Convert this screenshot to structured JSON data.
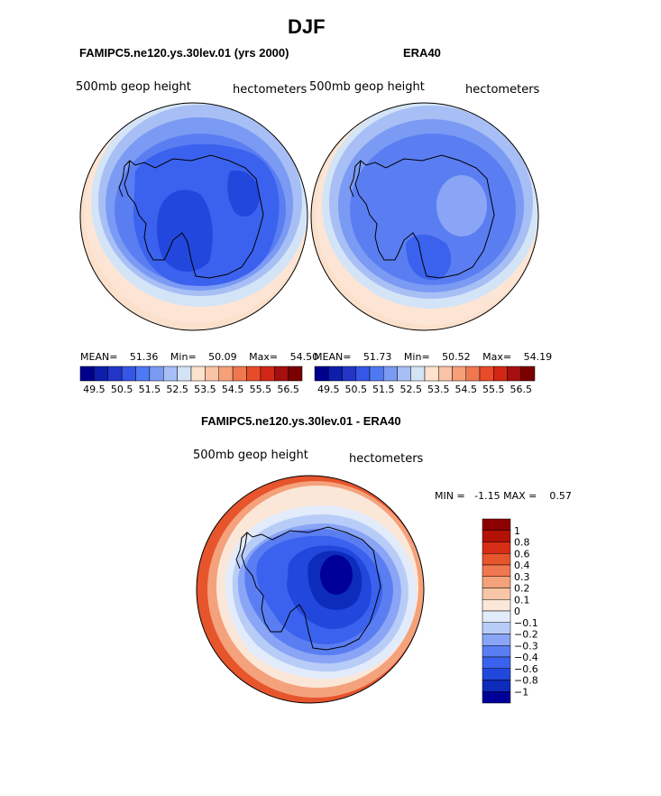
{
  "page_title": "DJF",
  "colors": {
    "levels_top": [
      "#00008c",
      "#0d1eab",
      "#2336c8",
      "#3656e6",
      "#4f78f3",
      "#7b9af3",
      "#a8bff5",
      "#d4e4f7",
      "#fde3ce",
      "#f9c3a5",
      "#f6a07a",
      "#f07850",
      "#e84b2a",
      "#d12616",
      "#a50f0f",
      "#7a0000"
    ],
    "levels_diff": [
      "#000099",
      "#0d2cbb",
      "#2247dd",
      "#3a62ee",
      "#5a7ef2",
      "#8aa5f5",
      "#b8ccf8",
      "#e2ebfa",
      "#fbe7d8",
      "#f8c5a6",
      "#f4a27c",
      "#f07850",
      "#e7552d",
      "#d62e16",
      "#b41206",
      "#8c0000"
    ]
  },
  "charts": {
    "left": {
      "title": "FAMIPC5.ne120.ys.30lev.01 (yrs 2000)",
      "variable": "500mb geop height",
      "units": "hectometers",
      "stats": {
        "mean_label": "MEAN=",
        "mean": "51.36",
        "min_label": "Min=",
        "min": "50.09",
        "max_label": "Max=",
        "max": "54.50"
      }
    },
    "right": {
      "title": "ERA40",
      "variable": "500mb geop height",
      "units": "hectometers",
      "stats": {
        "mean_label": "MEAN=",
        "mean": "51.73",
        "min_label": "Min=",
        "min": "50.52",
        "max_label": "Max=",
        "max": "54.19"
      }
    },
    "diff": {
      "title": "FAMIPC5.ne120.ys.30lev.01 - ERA40",
      "variable": "500mb geop height",
      "units": "hectometers",
      "minmax": "MIN =   -1.15 MAX =    0.57"
    }
  },
  "chart_data": [
    {
      "type": "heatmap",
      "title": "FAMIPC5.ne120.ys.30lev.01 (yrs 2000)",
      "variable": "500mb geop height",
      "units": "hectometers",
      "mean": 51.36,
      "min": 50.09,
      "max": 54.5,
      "colorbar_ticks": [
        "49.5",
        "50.5",
        "51.5",
        "52.5",
        "53.5",
        "54.5",
        "55.5",
        "56.5"
      ]
    },
    {
      "type": "heatmap",
      "title": "ERA40",
      "variable": "500mb geop height",
      "units": "hectometers",
      "mean": 51.73,
      "min": 50.52,
      "max": 54.19,
      "colorbar_ticks": [
        "49.5",
        "50.5",
        "51.5",
        "52.5",
        "53.5",
        "54.5",
        "55.5",
        "56.5"
      ]
    },
    {
      "type": "heatmap",
      "title": "FAMIPC5.ne120.ys.30lev.01 - ERA40",
      "variable": "500mb geop height",
      "units": "hectometers",
      "min": -1.15,
      "max": 0.57,
      "colorbar_ticks": [
        "1",
        "0.8",
        "0.6",
        "0.4",
        "0.3",
        "0.2",
        "0.1",
        "0",
        "−0.1",
        "−0.2",
        "−0.3",
        "−0.4",
        "−0.6",
        "−0.8",
        "−1"
      ]
    }
  ]
}
